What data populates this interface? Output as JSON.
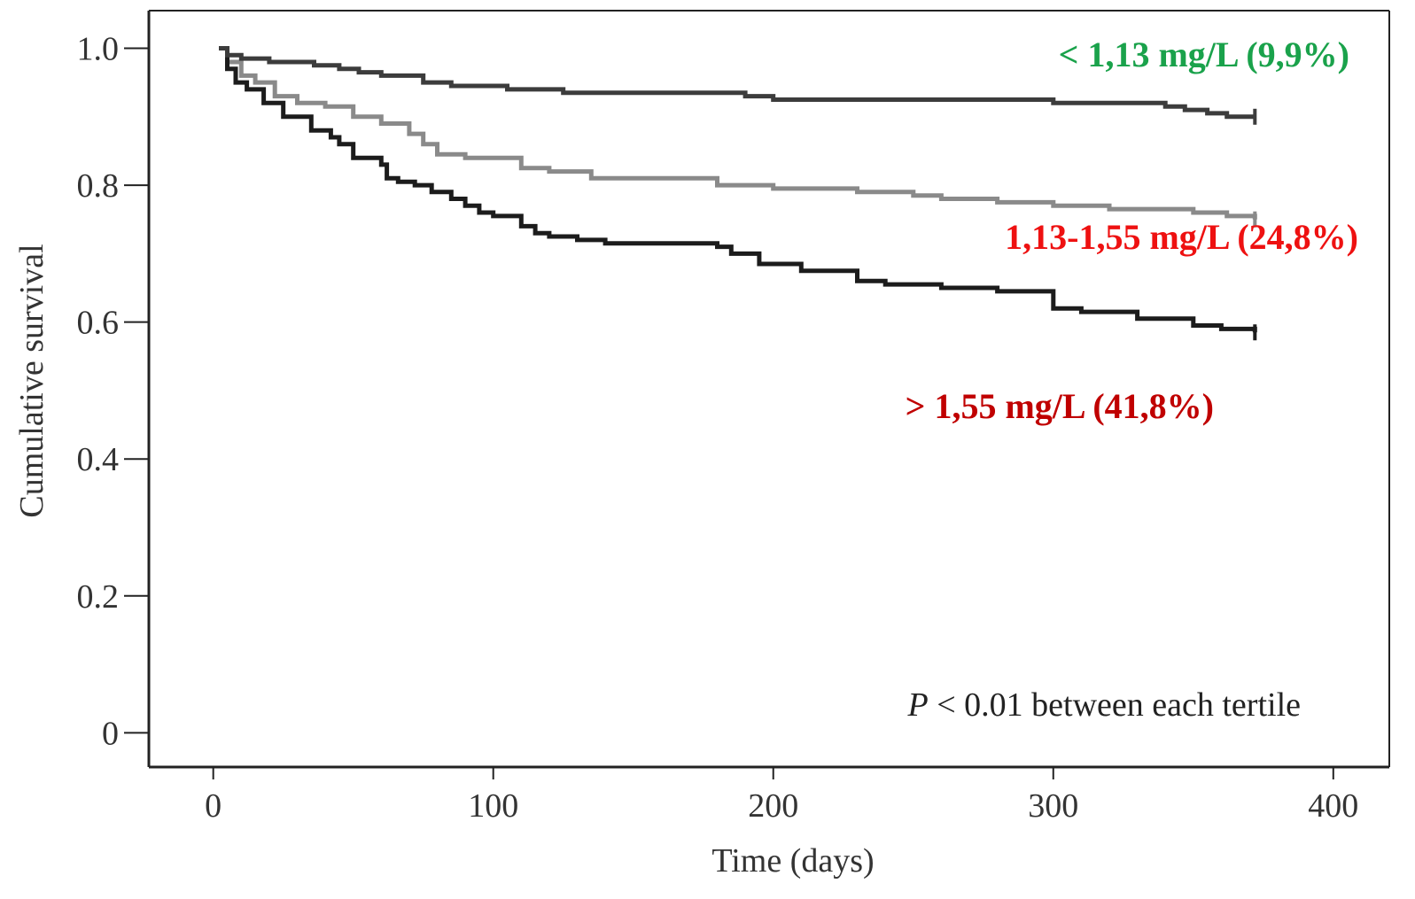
{
  "chart_data": {
    "type": "line",
    "xlabel": "Time (days)",
    "ylabel": "Cumulative survival",
    "xlim": [
      -23,
      420
    ],
    "ylim": [
      -0.05,
      1.055
    ],
    "xticks": [
      "0",
      "100",
      "200",
      "300",
      "400"
    ],
    "xtick_values": [
      0,
      100,
      200,
      300,
      400
    ],
    "yticks": [
      "0",
      "0.2",
      "0.4",
      "0.6",
      "0.8",
      "1.0"
    ],
    "ytick_values": [
      0,
      0.2,
      0.4,
      0.6,
      0.8,
      1.0
    ],
    "grid": false,
    "annotation": {
      "p_symbol": "P",
      "text": " < 0.01 between each tertile"
    },
    "series": [
      {
        "name": "< 1,13 mg/L (9,9%)",
        "color": "#3c3c3c",
        "label_color": "#1aa24b",
        "x": [
          2,
          5,
          10,
          20,
          32,
          36,
          45,
          52,
          60,
          75,
          85,
          105,
          125,
          145,
          190,
          200,
          230,
          260,
          280,
          300,
          320,
          340,
          347,
          355,
          362,
          372
        ],
        "y": [
          1.0,
          0.99,
          0.985,
          0.98,
          0.98,
          0.975,
          0.97,
          0.965,
          0.96,
          0.95,
          0.945,
          0.94,
          0.935,
          0.935,
          0.93,
          0.925,
          0.925,
          0.925,
          0.925,
          0.92,
          0.92,
          0.915,
          0.91,
          0.905,
          0.9,
          0.9
        ]
      },
      {
        "name": "1,13-1,55 mg/L (24,8%)",
        "color": "#8a8a8a",
        "label_color": "#ee1111",
        "x": [
          2,
          5,
          10,
          15,
          22,
          30,
          40,
          50,
          60,
          70,
          75,
          80,
          90,
          110,
          120,
          135,
          150,
          180,
          200,
          230,
          250,
          260,
          280,
          300,
          320,
          350,
          362,
          372
        ],
        "y": [
          1.0,
          0.98,
          0.96,
          0.95,
          0.93,
          0.92,
          0.915,
          0.9,
          0.89,
          0.875,
          0.86,
          0.845,
          0.84,
          0.825,
          0.82,
          0.81,
          0.81,
          0.8,
          0.795,
          0.79,
          0.785,
          0.78,
          0.775,
          0.77,
          0.765,
          0.76,
          0.755,
          0.75
        ]
      },
      {
        "name": "> 1,55 mg/L (41,8%)",
        "color": "#1c1c1c",
        "label_color": "#c00000",
        "x": [
          2,
          5,
          8,
          12,
          18,
          25,
          35,
          42,
          45,
          50,
          60,
          62,
          66,
          72,
          78,
          85,
          90,
          95,
          100,
          110,
          115,
          120,
          130,
          140,
          160,
          180,
          185,
          195,
          210,
          230,
          240,
          260,
          280,
          300,
          310,
          330,
          350,
          360,
          372
        ],
        "y": [
          1.0,
          0.97,
          0.95,
          0.94,
          0.92,
          0.9,
          0.88,
          0.87,
          0.86,
          0.84,
          0.83,
          0.81,
          0.805,
          0.8,
          0.79,
          0.78,
          0.77,
          0.76,
          0.755,
          0.74,
          0.73,
          0.725,
          0.72,
          0.715,
          0.715,
          0.71,
          0.7,
          0.685,
          0.675,
          0.66,
          0.655,
          0.65,
          0.645,
          0.62,
          0.615,
          0.605,
          0.595,
          0.59,
          0.585
        ]
      }
    ]
  }
}
